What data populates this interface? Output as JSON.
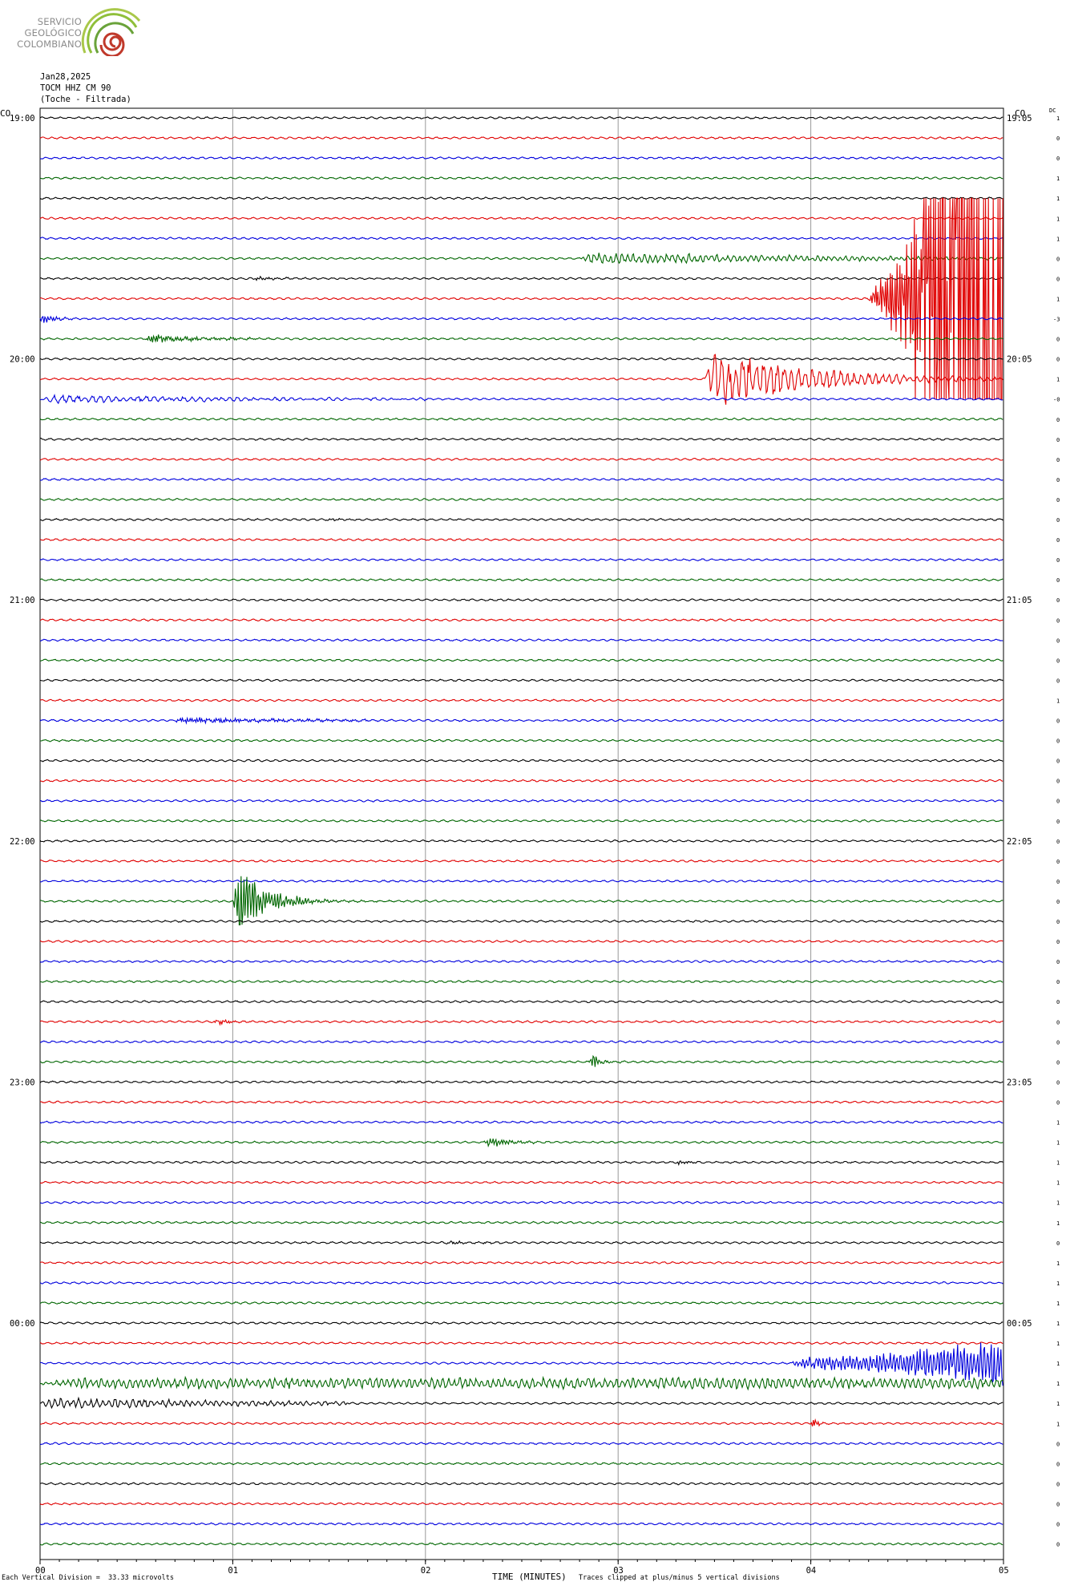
{
  "logo": {
    "line1": "SERVICIO",
    "line2": "GEOLÓGICO",
    "line3": "COLOMBIANO",
    "arc_colors": [
      "#9ec03a",
      "#7bb03a",
      "#c0392b"
    ]
  },
  "header": {
    "date": "Jan28,2025",
    "station": "TOCM HHZ CM 90",
    "site": "(Toche - Filtrada)"
  },
  "corner": {
    "left": "CO",
    "right": "CO",
    "dc": "DC"
  },
  "footer": {
    "scale_note": "Each Vertical Division =  33.33 microvolts",
    "xlabel": "TIME (MINUTES)",
    "clip_note": "Traces clipped at plus/minus 5 vertical divisions"
  },
  "chart_data": {
    "type": "line",
    "xlabel": "TIME (MINUTES)",
    "x_ticks": [
      "00",
      "01",
      "02",
      "03",
      "04",
      "05"
    ],
    "xlim": [
      0,
      5
    ],
    "trace_count": 72,
    "trace_colors": [
      "#000000",
      "#e00000",
      "#0000dd",
      "#006600"
    ],
    "left_time_labels": [
      {
        "row": 0,
        "label": "19:00"
      },
      {
        "row": 12,
        "label": "20:00"
      },
      {
        "row": 24,
        "label": "21:00"
      },
      {
        "row": 36,
        "label": "22:00"
      },
      {
        "row": 48,
        "label": "23:00"
      },
      {
        "row": 60,
        "label": "00:00"
      }
    ],
    "right_time_labels": [
      {
        "row": 0,
        "label": "19:05"
      },
      {
        "row": 12,
        "label": "20:05"
      },
      {
        "row": 24,
        "label": "21:05"
      },
      {
        "row": 36,
        "label": "22:05"
      },
      {
        "row": 48,
        "label": "23:05"
      },
      {
        "row": 60,
        "label": "00:05"
      }
    ],
    "dc_values": [
      "1",
      "0",
      "0",
      "1",
      "1",
      "1",
      "1",
      "0",
      "0",
      "1",
      "-3",
      "0",
      "0",
      "1",
      "-0",
      "0",
      "0",
      "0",
      "0",
      "0",
      "0",
      "0",
      "0",
      "0",
      "0",
      "0",
      "0",
      "0",
      "0",
      "1",
      "0",
      "0",
      "0",
      "0",
      "0",
      "0",
      "0",
      "0",
      "0",
      "0",
      "0",
      "0",
      "0",
      "0",
      "0",
      "0",
      "0",
      "0",
      "0",
      "0",
      "1",
      "1",
      "1",
      "1",
      "1",
      "1",
      "0",
      "1",
      "1",
      "1",
      "1",
      "1",
      "1",
      "1",
      "1",
      "1",
      "0",
      "0",
      "0",
      "0",
      "0",
      "0"
    ],
    "events": [
      {
        "row": 7,
        "start_min": 2.8,
        "end_min": 5.0,
        "amplitude": 0.55,
        "decay": 0.6,
        "freq": 3
      },
      {
        "row": 8,
        "start_min": 1.1,
        "end_min": 1.6,
        "amplitude": 0.18,
        "decay": 1.5,
        "freq": 6
      },
      {
        "row": 9,
        "start_min": 4.3,
        "end_min": 5.0,
        "amplitude": 0.9,
        "decay": -2.2,
        "freq": 7
      },
      {
        "row": 10,
        "start_min": 0.0,
        "end_min": 0.55,
        "amplitude": 0.7,
        "decay": 3,
        "freq": 6
      },
      {
        "row": 11,
        "start_min": 0.55,
        "end_min": 1.2,
        "amplitude": 0.4,
        "decay": 0.8,
        "freq": 7
      },
      {
        "row": 13,
        "start_min": 3.45,
        "end_min": 5.0,
        "amplitude": 2.6,
        "decay": 1.0,
        "freq": 2.4
      },
      {
        "row": 14,
        "start_min": 0.0,
        "end_min": 2.0,
        "amplitude": 0.35,
        "decay": 0.6,
        "freq": 2.2
      },
      {
        "row": 20,
        "start_min": 1.5,
        "end_min": 1.8,
        "amplitude": 0.12,
        "decay": 1.5,
        "freq": 5
      },
      {
        "row": 30,
        "start_min": 0.7,
        "end_min": 1.7,
        "amplitude": 0.25,
        "decay": 0.5,
        "freq": 7
      },
      {
        "row": 39,
        "start_min": 1.0,
        "end_min": 2.3,
        "amplitude": 4.6,
        "decay": 3.2,
        "freq": 6
      },
      {
        "row": 45,
        "start_min": 0.9,
        "end_min": 1.4,
        "amplitude": 0.35,
        "decay": 2.5,
        "freq": 7
      },
      {
        "row": 47,
        "start_min": 2.85,
        "end_min": 3.4,
        "amplitude": 0.9,
        "decay": 4,
        "freq": 6
      },
      {
        "row": 48,
        "start_min": 1.85,
        "end_min": 2.0,
        "amplitude": 0.12,
        "decay": 1,
        "freq": 6
      },
      {
        "row": 51,
        "start_min": 2.3,
        "end_min": 3.2,
        "amplitude": 0.5,
        "decay": 2.5,
        "freq": 6
      },
      {
        "row": 52,
        "start_min": 3.3,
        "end_min": 3.65,
        "amplitude": 0.28,
        "decay": 2,
        "freq": 6
      },
      {
        "row": 56,
        "start_min": 2.1,
        "end_min": 2.5,
        "amplitude": 0.15,
        "decay": 1,
        "freq": 6
      },
      {
        "row": 62,
        "start_min": 3.9,
        "end_min": 5.0,
        "amplitude": 0.45,
        "decay": -0.5,
        "freq": 5
      },
      {
        "row": 63,
        "start_min": 0.0,
        "end_min": 5.0,
        "amplitude": 0.42,
        "decay": 0,
        "freq": 3
      },
      {
        "row": 64,
        "start_min": 0.0,
        "end_min": 1.6,
        "amplitude": 0.45,
        "decay": 0.4,
        "freq": 2.8
      },
      {
        "row": 65,
        "start_min": 4.0,
        "end_min": 4.4,
        "amplitude": 0.8,
        "decay": 5,
        "freq": 7
      }
    ]
  }
}
